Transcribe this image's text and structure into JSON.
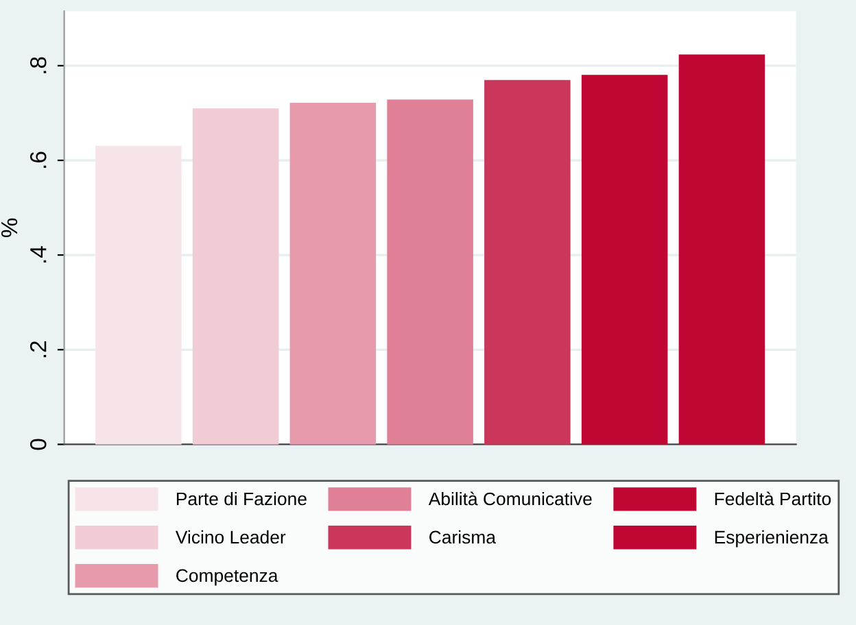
{
  "chart_data": {
    "type": "bar",
    "ylabel": "%",
    "categories": [
      null
    ],
    "series": [
      {
        "name": "Parte di Fazione",
        "color": "#f7e4e9",
        "values": [
          0.629
        ]
      },
      {
        "name": "Vicino Leader",
        "color": "#f2ccd5",
        "values": [
          0.708
        ]
      },
      {
        "name": "Competenza",
        "color": "#e69aac",
        "values": [
          0.72
        ]
      },
      {
        "name": "Abilità Comunicative",
        "color": "#df8096",
        "values": [
          0.727
        ]
      },
      {
        "name": "Carisma",
        "color": "#cb375b",
        "values": [
          0.768
        ]
      },
      {
        "name": "Fedeltà Partito",
        "color": "#c00633",
        "values": [
          0.779
        ]
      },
      {
        "name": "Esperienienza",
        "color": "#c00633",
        "values": [
          0.822
        ]
      }
    ],
    "ylim": [
      0,
      0.915
    ],
    "yticks": [
      0,
      {
        "value": 0.2,
        "label": ".2"
      },
      {
        "value": 0.4,
        "label": ".4"
      },
      {
        "value": 0.6,
        "label": ".6"
      },
      {
        "value": 0.8,
        "label": ".8"
      }
    ],
    "grid": "y",
    "legend": "bottom"
  }
}
